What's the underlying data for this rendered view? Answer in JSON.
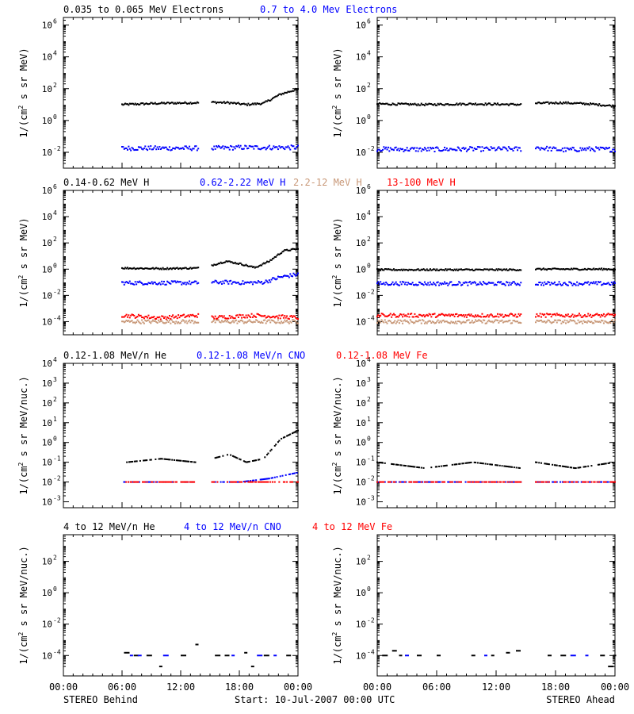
{
  "colors": {
    "black": "#000000",
    "blue": "#0000ff",
    "red": "#ff0000",
    "tan": "#c89878"
  },
  "footer": {
    "left": "STEREO Behind",
    "center": "Start: 10-Jul-2007 00:00 UTC",
    "right": "STEREO Ahead"
  },
  "x_tick_labels": [
    "00:00",
    "06:00",
    "12:00",
    "18:00",
    "00:00"
  ],
  "chart_data": [
    {
      "type": "scatter",
      "row": 1,
      "legend": [
        {
          "name": "0.035 to 0.065 MeV Electrons",
          "color": "#000000"
        },
        {
          "name": "0.7 to 4.0 Mev Electrons",
          "color": "#0000ff"
        }
      ],
      "y_ticks": [
        "10-2",
        "100",
        "102",
        "104",
        "106"
      ],
      "ylabel": "1/(cm2 s sr MeV)",
      "yscale": "log",
      "ylim": [
        0.001,
        3000000
      ],
      "xlim": [
        0,
        24
      ],
      "panels": [
        {
          "name": "STEREO Behind",
          "series": [
            {
              "name": "0.035 to 0.065 MeV Electrons",
              "color": "#000000",
              "segments": [
                [
                  6,
                  13.8,
                  [
                    10,
                    12,
                    13
                  ]
                ],
                [
                  15.2,
                  24,
                  [
                    14,
                    13,
                    10,
                    12,
                    45,
                    95
                  ]
                ]
              ]
            },
            {
              "name": "0.7 to 4.0 Mev Electrons",
              "color": "#0000ff",
              "segments": [
                [
                  6,
                  13.8,
                  [
                    0.018,
                    0.018,
                    0.018
                  ]
                ],
                [
                  15.2,
                  24,
                  [
                    0.018,
                    0.02,
                    0.02,
                    0.02
                  ]
                ]
              ]
            }
          ]
        },
        {
          "name": "STEREO Ahead",
          "series": [
            {
              "name": "0.035 to 0.065 MeV Electrons",
              "color": "#000000",
              "segments": [
                [
                  0,
                  14.5,
                  [
                    11,
                    10,
                    11,
                    10
                  ]
                ],
                [
                  16,
                  24,
                  [
                    12,
                    13,
                    11,
                    8
                  ]
                ]
              ]
            },
            {
              "name": "0.7 to 4.0 Mev Electrons",
              "color": "#0000ff",
              "segments": [
                [
                  0,
                  14.5,
                  [
                    0.016,
                    0.015,
                    0.016,
                    0.016
                  ]
                ],
                [
                  16,
                  24,
                  [
                    0.02,
                    0.014,
                    0.016,
                    0.015
                  ]
                ]
              ]
            }
          ]
        }
      ]
    },
    {
      "type": "scatter",
      "row": 2,
      "legend": [
        {
          "name": "0.14-0.62 MeV H",
          "color": "#000000"
        },
        {
          "name": "0.62-2.22 MeV H",
          "color": "#0000ff"
        },
        {
          "name": "2.2-12 MeV H",
          "color": "#c89878"
        },
        {
          "name": "13-100 MeV H",
          "color": "#ff0000"
        }
      ],
      "y_ticks": [
        "10-4",
        "10-2",
        "100",
        "102",
        "104",
        "106"
      ],
      "ylabel": "1/(cm2 s sr MeV)",
      "yscale": "log",
      "ylim": [
        1e-05,
        1000000
      ],
      "xlim": [
        0,
        24
      ],
      "panels": [
        {
          "name": "STEREO Behind",
          "series": [
            {
              "name": "0.14-0.62 MeV H",
              "color": "#000000",
              "segments": [
                [
                  6,
                  13.8,
                  [
                    1.2,
                    1.1,
                    1.2
                  ]
                ],
                [
                  15.2,
                  24,
                  [
                    2.0,
                    4.0,
                    2.5,
                    1.3,
                    4.0,
                    25,
                    35
                  ]
                ]
              ]
            },
            {
              "name": "0.62-2.22 MeV H",
              "color": "#0000ff",
              "segments": [
                [
                  6,
                  13.8,
                  [
                    0.09,
                    0.09,
                    0.09
                  ]
                ],
                [
                  15.2,
                  24,
                  [
                    0.1,
                    0.1,
                    0.09,
                    0.1,
                    0.25,
                    0.4
                  ]
                ]
              ]
            },
            {
              "name": "2.2-12 MeV H",
              "color": "#c89878",
              "segments": [
                [
                  6,
                  13.8,
                  [
                    0.0001,
                    0.0001,
                    0.0001
                  ]
                ],
                [
                  15.2,
                  24,
                  [
                    0.0001,
                    0.0001,
                    0.0001
                  ]
                ]
              ]
            },
            {
              "name": "13-100 MeV H",
              "color": "#ff0000",
              "segments": [
                [
                  6,
                  13.8,
                  [
                    0.0003,
                    0.0002,
                    0.0003
                  ]
                ],
                [
                  15.2,
                  24,
                  [
                    0.0002,
                    0.0003,
                    0.0002
                  ]
                ]
              ]
            }
          ]
        },
        {
          "name": "STEREO Ahead",
          "series": [
            {
              "name": "0.14-0.62 MeV H",
              "color": "#000000",
              "segments": [
                [
                  0,
                  14.5,
                  [
                    0.9,
                    0.9,
                    0.9,
                    0.9
                  ]
                ],
                [
                  16,
                  24,
                  [
                    1.0,
                    1.0,
                    1.0
                  ]
                ]
              ]
            },
            {
              "name": "0.62-2.22 MeV H",
              "color": "#0000ff",
              "segments": [
                [
                  0,
                  14.5,
                  [
                    0.08,
                    0.08,
                    0.08,
                    0.08
                  ]
                ],
                [
                  16,
                  24,
                  [
                    0.08,
                    0.08,
                    0.08
                  ]
                ]
              ]
            },
            {
              "name": "2.2-12 MeV H",
              "color": "#c89878",
              "segments": [
                [
                  0,
                  14.5,
                  [
                    0.0001,
                    0.0001,
                    0.0001
                  ]
                ],
                [
                  16,
                  24,
                  [
                    0.0001,
                    0.0001,
                    0.0001
                  ]
                ]
              ]
            },
            {
              "name": "13-100 MeV H",
              "color": "#ff0000",
              "segments": [
                [
                  0,
                  14.5,
                  [
                    0.0003,
                    0.0003,
                    0.0003
                  ]
                ],
                [
                  16,
                  24,
                  [
                    0.0003,
                    0.0003,
                    0.0003
                  ]
                ]
              ]
            }
          ]
        }
      ]
    },
    {
      "type": "scatter",
      "row": 3,
      "legend": [
        {
          "name": "0.12-1.08 MeV/n He",
          "color": "#000000"
        },
        {
          "name": "0.12-1.08 MeV/n CNO",
          "color": "#0000ff"
        },
        {
          "name": "0.12-1.08 MeV Fe",
          "color": "#ff0000"
        }
      ],
      "y_ticks": [
        "10-3",
        "10-2",
        "10-1",
        "100",
        "101",
        "102",
        "103",
        "104"
      ],
      "ylabel": "1/(cm2 s sr MeV/nuc.)",
      "yscale": "log",
      "ylim": [
        0.0005,
        10000
      ],
      "xlim": [
        0,
        24
      ],
      "panels": [
        {
          "name": "STEREO Behind",
          "series": [
            {
              "name": "0.12-1.08 MeV/n He",
              "color": "#000000",
              "segments": [
                [
                  6.5,
                  13.5,
                  [
                    0.1,
                    0.15,
                    0.1
                  ]
                ],
                [
                  15.2,
                  24,
                  [
                    0.15,
                    0.25,
                    0.1,
                    0.15,
                    1.5,
                    4.0
                  ]
                ]
              ]
            },
            {
              "name": "0.12-1.08 MeV/n CNO",
              "color": "#0000ff",
              "segments": [
                [
                  6.2,
                  13.5,
                  [
                    0.01,
                    0.01,
                    0.01
                  ]
                ],
                [
                  15.2,
                  24,
                  [
                    0.01,
                    0.01,
                    0.015,
                    0.03
                  ]
                ]
              ]
            },
            {
              "name": "0.12-1.08 MeV Fe",
              "color": "#ff0000",
              "segments": [
                [
                  6.2,
                  13.5,
                  [
                    0.01
                  ]
                ],
                [
                  15.2,
                  24,
                  [
                    0.01
                  ]
                ]
              ]
            }
          ]
        },
        {
          "name": "STEREO Ahead",
          "series": [
            {
              "name": "0.12-1.08 MeV/n He",
              "color": "#000000",
              "segments": [
                [
                  0,
                  14.5,
                  [
                    0.1,
                    0.05,
                    0.1,
                    0.05
                  ]
                ],
                [
                  16,
                  24,
                  [
                    0.1,
                    0.05,
                    0.1
                  ]
                ]
              ]
            },
            {
              "name": "0.12-1.08 MeV/n CNO",
              "color": "#0000ff",
              "segments": [
                [
                  0,
                  14.5,
                  [
                    0.01
                  ]
                ],
                [
                  16,
                  24,
                  [
                    0.01
                  ]
                ]
              ]
            },
            {
              "name": "0.12-1.08 MeV Fe",
              "color": "#ff0000",
              "segments": [
                [
                  0,
                  14.5,
                  [
                    0.01
                  ]
                ],
                [
                  16,
                  24,
                  [
                    0.01
                  ]
                ]
              ]
            }
          ]
        }
      ]
    },
    {
      "type": "scatter",
      "row": 4,
      "legend": [
        {
          "name": "4 to 12 MeV/n He",
          "color": "#000000"
        },
        {
          "name": "4 to 12 MeV/n CNO",
          "color": "#0000ff"
        },
        {
          "name": "4 to 12 MeV Fe",
          "color": "#ff0000"
        }
      ],
      "y_ticks": [
        "10-4",
        "10-2",
        "100",
        "102"
      ],
      "ylabel": "1/(cm2 s sr MeV/nuc.)",
      "yscale": "log",
      "ylim": [
        5e-06,
        5000
      ],
      "xlim": [
        0,
        24
      ],
      "panels": [
        {
          "name": "STEREO Behind",
          "series": [
            {
              "name": "4 to 12 MeV/n He",
              "color": "#000000",
              "points": [
                [
                  6.2,
                  0.00015
                ],
                [
                  7.2,
                  0.0001
                ],
                [
                  8.5,
                  0.0001
                ],
                [
                  9.8,
                  2e-05
                ],
                [
                  12.0,
                  0.0001
                ],
                [
                  13.5,
                  0.0005
                ],
                [
                  15.5,
                  0.0001
                ],
                [
                  16.5,
                  0.0001
                ],
                [
                  18.5,
                  0.00015
                ],
                [
                  19.2,
                  2e-05
                ],
                [
                  20.5,
                  0.0001
                ],
                [
                  22.8,
                  0.0001
                ]
              ]
            },
            {
              "name": "4 to 12 MeV/n CNO",
              "color": "#0000ff",
              "points": [
                [
                  6.8,
                  0.0001
                ],
                [
                  7.6,
                  0.0001
                ],
                [
                  10.2,
                  0.0001
                ],
                [
                  17.2,
                  0.0001
                ],
                [
                  19.8,
                  0.0001
                ],
                [
                  21.5,
                  0.0001
                ]
              ]
            }
          ]
        },
        {
          "name": "STEREO Ahead",
          "series": [
            {
              "name": "4 to 12 MeV/n He",
              "color": "#000000",
              "points": [
                [
                  0.5,
                  0.0001
                ],
                [
                  1.5,
                  0.0002
                ],
                [
                  2.2,
                  0.0001
                ],
                [
                  4.0,
                  0.0001
                ],
                [
                  6.0,
                  0.0001
                ],
                [
                  9.5,
                  0.0001
                ],
                [
                  11.5,
                  0.0001
                ],
                [
                  13.0,
                  0.00015
                ],
                [
                  14.0,
                  0.0002
                ],
                [
                  17.2,
                  0.0001
                ],
                [
                  18.5,
                  0.0001
                ],
                [
                  22.5,
                  0.0001
                ],
                [
                  23.3,
                  2e-05
                ],
                [
                  23.8,
                  0.0001
                ]
              ]
            },
            {
              "name": "4 to 12 MeV/n CNO",
              "color": "#0000ff",
              "points": [
                [
                  2.8,
                  0.0001
                ],
                [
                  10.8,
                  0.0001
                ],
                [
                  19.5,
                  0.0001
                ],
                [
                  21.0,
                  0.0001
                ]
              ]
            }
          ]
        }
      ]
    }
  ]
}
